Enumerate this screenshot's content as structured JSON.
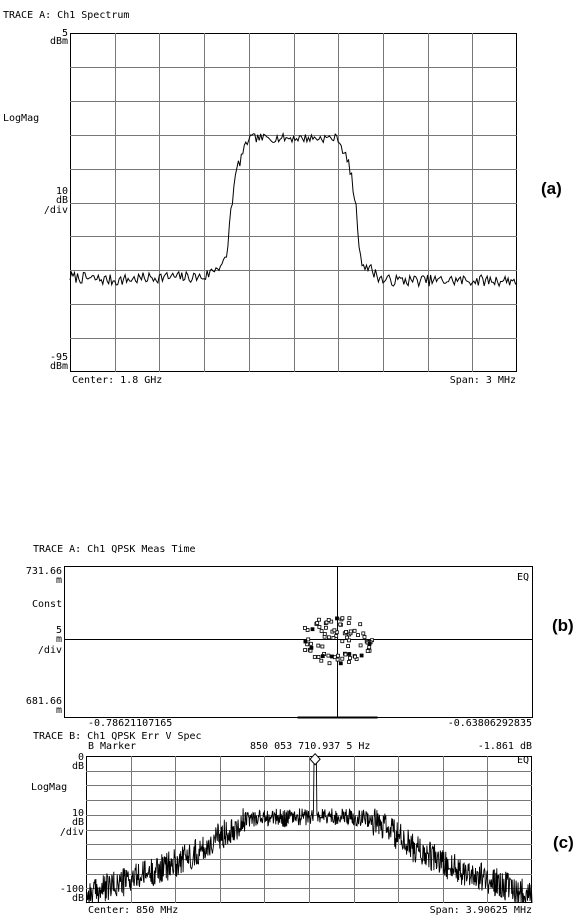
{
  "panel_a": {
    "title": "TRACE A: Ch1 Spectrum",
    "y_top_value": "5",
    "y_top_unit": "dBm",
    "y_format": "LogMag",
    "y_scale_value": "10",
    "y_scale_unit": "dB",
    "y_scale_per": "/div",
    "y_bottom_value": "-95",
    "y_bottom_unit": "dBm",
    "center_label": "Center: 1.8 GHz",
    "span_label": "Span: 3 MHz",
    "panel_label": "(a)"
  },
  "panel_b": {
    "title": "TRACE A: Ch1 QPSK Meas Time",
    "y_top_value": "731.66",
    "y_top_unit": "m",
    "y_format": "Const",
    "y_scale_value": "5",
    "y_scale_unit": "m",
    "y_scale_per": "/div",
    "y_bottom_value": "681.66",
    "y_bottom_unit": "m",
    "x_left_label": "-0.78621107165",
    "x_right_label": "-0.63806292835",
    "eq_label": "EQ",
    "panel_label": "(b)"
  },
  "panel_c": {
    "title": "TRACE B: Ch1 QPSK Err V Spec",
    "marker_label": "B Marker",
    "marker_freq": "850 053 710.937 5 Hz",
    "marker_value": "-1.861 dB",
    "eq_label": "EQ",
    "y_top_value": "0",
    "y_top_unit": "dB",
    "y_format": "LogMag",
    "y_scale_value": "10",
    "y_scale_unit": "dB",
    "y_scale_per": "/div",
    "y_bottom_value": "-100",
    "y_bottom_unit": "dB",
    "center_label": "Center: 850 MHz",
    "span_label": "Span: 3.90625 MHz",
    "panel_label": "(c)"
  },
  "chart_data": [
    {
      "type": "line",
      "title": "TRACE A: Ch1 Spectrum",
      "ylabel": "LogMag",
      "x_unit": "MHz offset from center",
      "xlim": [
        -1.5,
        1.5
      ],
      "ylim": [
        -95,
        5
      ],
      "y_unit": "dBm",
      "grid": true,
      "x": [
        -1.5,
        -1.2,
        -0.9,
        -0.6,
        -0.45,
        -0.42,
        -0.38,
        -0.3,
        -0.2,
        0,
        0.2,
        0.3,
        0.38,
        0.42,
        0.45,
        0.6,
        0.9,
        1.2,
        1.5
      ],
      "y": [
        -67,
        -68,
        -67,
        -67,
        -62,
        -47,
        -35,
        -26,
        -26,
        -26,
        -26,
        -26,
        -35,
        -47,
        -62,
        -68,
        -68,
        -68,
        -68
      ]
    },
    {
      "type": "scatter",
      "title": "TRACE A: Ch1 QPSK Meas Time",
      "ylabel": "Const",
      "xlim": [
        -0.78621107165,
        -0.63806292835
      ],
      "ylim": [
        681.66,
        731.66
      ],
      "y_unit": "m",
      "grid": false,
      "center_x": -0.7,
      "center_y": 707.5,
      "spread_x": 0.012,
      "spread_y": 8,
      "point_count": 85
    },
    {
      "type": "line",
      "title": "TRACE B: Ch1 QPSK Err V Spec",
      "ylabel": "LogMag",
      "x_unit": "MHz offset from center",
      "xlim": [
        -1.953125,
        1.953125
      ],
      "ylim": [
        -100,
        0
      ],
      "y_unit": "dB",
      "grid": true,
      "x": [
        -1.953,
        -1.6,
        -1.2,
        -0.9,
        -0.7,
        -0.5,
        -0.2,
        0,
        0.05,
        0.2,
        0.5,
        0.7,
        0.9,
        1.2,
        1.6,
        1.953
      ],
      "y": [
        -95,
        -85,
        -74,
        -62,
        -50,
        -42,
        -42,
        -41,
        -2,
        -41,
        -42,
        -50,
        -62,
        -74,
        -85,
        -95
      ],
      "marker": {
        "x": 0.0537,
        "y": -1.861
      }
    }
  ]
}
